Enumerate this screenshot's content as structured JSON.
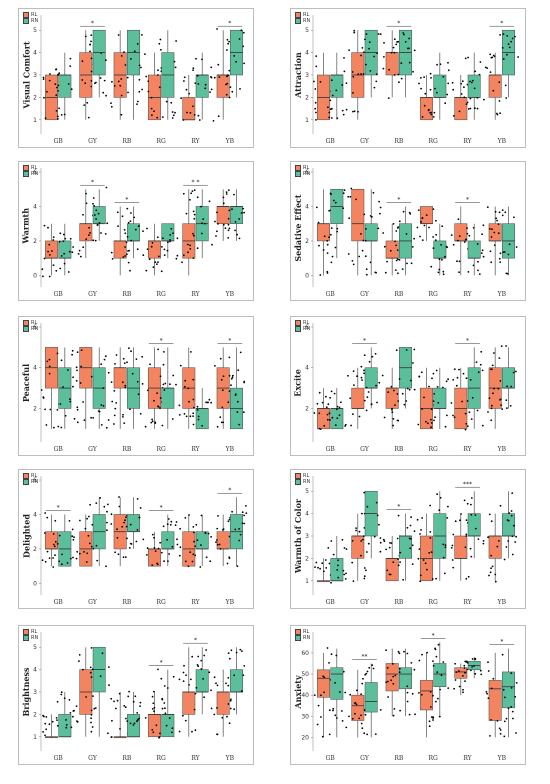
{
  "legend": [
    {
      "label": "RL",
      "color": "#f4845f"
    },
    {
      "label": "RN",
      "color": "#5bbf9c"
    }
  ],
  "colors": {
    "rl": "#f4845f",
    "rn": "#5bbf9c",
    "whisker": "#333333",
    "point": "#000000"
  },
  "chart_data": [
    {
      "type": "box",
      "ylabel": "Visual Comfort",
      "yticks": [
        1,
        2,
        3,
        4,
        5
      ],
      "ylim": [
        0.5,
        5.5
      ],
      "categories": [
        "GB",
        "GY",
        "RB",
        "RG",
        "RY",
        "YB"
      ],
      "significance": [
        "",
        "*",
        "",
        "",
        "",
        "*"
      ],
      "series": [
        {
          "name": "RL",
          "boxes": [
            [
              1,
              1,
              2,
              3,
              3
            ],
            [
              1,
              2,
              3,
              4,
              5
            ],
            [
              1,
              2,
              3,
              4,
              5
            ],
            [
              1,
              1,
              2,
              3,
              4
            ],
            [
              1,
              1,
              1,
              2,
              3
            ],
            [
              1,
              2,
              3,
              3,
              5
            ]
          ]
        },
        {
          "name": "RN",
          "boxes": [
            [
              1,
              2,
              3,
              3,
              4
            ],
            [
              2,
              3,
              4,
              5,
              5
            ],
            [
              1,
              3,
              4,
              5,
              5
            ],
            [
              1,
              2,
              3,
              4,
              5
            ],
            [
              1,
              2,
              3,
              3,
              4
            ],
            [
              2,
              3,
              4,
              5,
              5
            ]
          ]
        }
      ]
    },
    {
      "type": "box",
      "ylabel": "Attraction",
      "yticks": [
        1,
        2,
        3,
        4,
        5
      ],
      "ylim": [
        0.5,
        5.5
      ],
      "categories": [
        "GB",
        "GY",
        "RB",
        "RG",
        "RY",
        "YB"
      ],
      "significance": [
        "",
        "",
        "*",
        "",
        "",
        "*"
      ],
      "series": [
        {
          "name": "RL",
          "boxes": [
            [
              1,
              1,
              2,
              3,
              4
            ],
            [
              1,
              2,
              3,
              4,
              5
            ],
            [
              2,
              3,
              4,
              4,
              5
            ],
            [
              1,
              1,
              2,
              2,
              3
            ],
            [
              1,
              1,
              2,
              2,
              3
            ],
            [
              1,
              2,
              3,
              3,
              4
            ]
          ]
        },
        {
          "name": "RN",
          "boxes": [
            [
              1,
              2,
              3,
              3,
              4
            ],
            [
              2,
              3,
              4,
              5,
              5
            ],
            [
              2,
              3,
              4,
              5,
              5
            ],
            [
              1,
              2,
              2,
              3,
              4
            ],
            [
              1,
              2,
              2,
              3,
              4
            ],
            [
              2,
              3,
              4,
              5,
              5
            ]
          ]
        }
      ]
    },
    {
      "type": "box",
      "ylabel": "Warmth",
      "yticks": [
        0,
        2,
        4,
        6
      ],
      "ylim": [
        -0.5,
        6
      ],
      "categories": [
        "GB",
        "GY",
        "RB",
        "RG",
        "RY",
        "YB"
      ],
      "significance": [
        "",
        "*",
        "*",
        "",
        "* *",
        ""
      ],
      "series": [
        {
          "name": "RL",
          "boxes": [
            [
              0,
              1,
              1,
              2,
              3
            ],
            [
              1,
              2,
              3,
              3,
              5
            ],
            [
              0,
              1,
              2,
              2,
              4
            ],
            [
              0,
              1,
              2,
              2,
              3
            ],
            [
              0,
              1,
              2,
              3,
              5
            ],
            [
              2,
              3,
              4,
              4,
              5
            ]
          ]
        },
        {
          "name": "RN",
          "boxes": [
            [
              0,
              1,
              1,
              2,
              3
            ],
            [
              2,
              3,
              3,
              4,
              5
            ],
            [
              1,
              2,
              2,
              3,
              4
            ],
            [
              1,
              2,
              2,
              3,
              3
            ],
            [
              1,
              2,
              3,
              4,
              5
            ],
            [
              2,
              3,
              4,
              4,
              5
            ]
          ]
        }
      ]
    },
    {
      "type": "box",
      "ylabel": "Sedative Effect",
      "yticks": [
        0,
        2,
        4,
        6
      ],
      "ylim": [
        -0.5,
        6
      ],
      "categories": [
        "GB",
        "GY",
        "RB",
        "RG",
        "RY",
        "YB"
      ],
      "significance": [
        "",
        "",
        "*",
        "",
        "*",
        ""
      ],
      "series": [
        {
          "name": "RL",
          "boxes": [
            [
              0,
              2,
              3,
              3,
              5
            ],
            [
              0,
              2,
              3,
              5,
              5
            ],
            [
              0,
              1,
              1,
              2,
              3
            ],
            [
              2,
              3,
              3,
              4,
              4
            ],
            [
              0,
              2,
              2,
              3,
              4
            ],
            [
              0,
              2,
              2,
              3,
              4
            ]
          ]
        },
        {
          "name": "RN",
          "boxes": [
            [
              1,
              3,
              4,
              5,
              5
            ],
            [
              0,
              2,
              2,
              3,
              5
            ],
            [
              0,
              1,
              2,
              3,
              4
            ],
            [
              0,
              1,
              1,
              2,
              3
            ],
            [
              0,
              1,
              1,
              2,
              3
            ],
            [
              0,
              1,
              2,
              3,
              4
            ]
          ]
        }
      ]
    },
    {
      "type": "box",
      "ylabel": "Peaceful",
      "yticks": [
        2,
        4,
        6
      ],
      "ylim": [
        0.5,
        6
      ],
      "categories": [
        "GB",
        "GY",
        "RB",
        "RG",
        "RY",
        "YB"
      ],
      "significance": [
        "",
        "",
        "",
        "*",
        "",
        "*"
      ],
      "series": [
        {
          "name": "RL",
          "boxes": [
            [
              1,
              3,
              4,
              5,
              5
            ],
            [
              1,
              3,
              4,
              5,
              5
            ],
            [
              1,
              3,
              4,
              4,
              5
            ],
            [
              1,
              2,
              3,
              4,
              5
            ],
            [
              1,
              2,
              3,
              4,
              5
            ],
            [
              1,
              2,
              3,
              4,
              5
            ]
          ]
        },
        {
          "name": "RN",
          "boxes": [
            [
              1,
              2,
              3,
              4,
              5
            ],
            [
              1,
              2,
              3,
              4,
              5
            ],
            [
              1,
              2,
              3,
              4,
              5
            ],
            [
              1,
              2,
              3,
              3,
              5
            ],
            [
              1,
              1,
              2,
              2,
              3
            ],
            [
              1,
              1,
              2,
              3,
              5
            ]
          ]
        }
      ]
    },
    {
      "type": "box",
      "ylabel": "Excite",
      "yticks": [
        2,
        4,
        6
      ],
      "ylim": [
        0.5,
        6
      ],
      "categories": [
        "GB",
        "GY",
        "RB",
        "RG",
        "RY",
        "YB"
      ],
      "significance": [
        "",
        "*",
        "",
        "",
        "*",
        ""
      ],
      "series": [
        {
          "name": "RL",
          "boxes": [
            [
              1,
              1,
              2,
              2,
              3
            ],
            [
              1,
              2,
              2,
              3,
              4
            ],
            [
              1,
              2,
              3,
              3,
              4
            ],
            [
              1,
              1,
              2,
              3,
              4
            ],
            [
              1,
              1,
              2,
              3,
              4
            ],
            [
              1,
              2,
              3,
              4,
              5
            ]
          ]
        },
        {
          "name": "RN",
          "boxes": [
            [
              1,
              1,
              2,
              2,
              3
            ],
            [
              2,
              3,
              3,
              4,
              5
            ],
            [
              2,
              3,
              4,
              5,
              5
            ],
            [
              1,
              2,
              2,
              3,
              4
            ],
            [
              1,
              2,
              3,
              4,
              5
            ],
            [
              2,
              3,
              3,
              4,
              5
            ]
          ]
        }
      ]
    },
    {
      "type": "box",
      "ylabel": "Delighted",
      "yticks": [
        0,
        2,
        4,
        6
      ],
      "ylim": [
        -0.5,
        6
      ],
      "categories": [
        "GB",
        "GY",
        "RB",
        "RG",
        "RY",
        "YB"
      ],
      "significance": [
        "*",
        "",
        "",
        "*",
        "",
        "*"
      ],
      "series": [
        {
          "name": "RL",
          "boxes": [
            [
              1,
              2,
              2,
              3,
              4
            ],
            [
              1,
              1,
              2,
              3,
              4
            ],
            [
              1,
              2,
              3,
              4,
              5
            ],
            [
              1,
              1,
              2,
              2,
              3
            ],
            [
              1,
              1,
              2,
              3,
              4
            ],
            [
              1,
              2,
              2,
              3,
              4
            ]
          ]
        },
        {
          "name": "RN",
          "boxes": [
            [
              1,
              1,
              2,
              3,
              4
            ],
            [
              1,
              2,
              3,
              4,
              5
            ],
            [
              2,
              3,
              3,
              4,
              5
            ],
            [
              1,
              2,
              2,
              3,
              4
            ],
            [
              1,
              2,
              2,
              3,
              4
            ],
            [
              1,
              2,
              3,
              4,
              5
            ]
          ]
        }
      ]
    },
    {
      "type": "box",
      "ylabel": "Warmth of Color",
      "yticks": [
        1,
        2,
        3,
        4,
        5
      ],
      "ylim": [
        0.5,
        5.5
      ],
      "categories": [
        "GB",
        "GY",
        "RB",
        "RG",
        "RY",
        "YB"
      ],
      "significance": [
        "",
        "",
        "*",
        "",
        "***",
        ""
      ],
      "series": [
        {
          "name": "RL",
          "boxes": [
            [
              1,
              1,
              1,
              1,
              2
            ],
            [
              1,
              2,
              3,
              3,
              4
            ],
            [
              1,
              1,
              2,
              2,
              3
            ],
            [
              1,
              1,
              2,
              3,
              4
            ],
            [
              1,
              2,
              2,
              3,
              4
            ],
            [
              1,
              2,
              3,
              3,
              4
            ]
          ]
        },
        {
          "name": "RN",
          "boxes": [
            [
              1,
              1,
              1,
              2,
              3
            ],
            [
              2,
              3,
              4,
              5,
              5
            ],
            [
              1,
              2,
              3,
              3,
              4
            ],
            [
              1,
              2,
              3,
              4,
              5
            ],
            [
              2,
              3,
              3,
              4,
              5
            ],
            [
              2,
              3,
              3,
              4,
              5
            ]
          ]
        }
      ]
    },
    {
      "type": "box",
      "ylabel": "Brightness",
      "yticks": [
        1,
        2,
        3,
        4,
        5
      ],
      "ylim": [
        0.5,
        5.5
      ],
      "categories": [
        "GB",
        "GY",
        "RB",
        "RG",
        "RY",
        "YB"
      ],
      "significance": [
        "",
        "",
        "",
        "*",
        "*",
        ""
      ],
      "series": [
        {
          "name": "RL",
          "boxes": [
            [
              1,
              1,
              1,
              1,
              2
            ],
            [
              1,
              2,
              3,
              4,
              5
            ],
            [
              1,
              1,
              1,
              1,
              3
            ],
            [
              1,
              1,
              2,
              2,
              3
            ],
            [
              1,
              2,
              3,
              3,
              5
            ],
            [
              1,
              2,
              3,
              3,
              4
            ]
          ]
        },
        {
          "name": "RN",
          "boxes": [
            [
              1,
              1,
              1,
              2,
              3
            ],
            [
              1,
              3,
              4,
              5,
              5
            ],
            [
              1,
              1,
              1,
              2,
              3
            ],
            [
              1,
              1,
              2,
              2,
              4
            ],
            [
              2,
              3,
              3,
              4,
              5
            ],
            [
              2,
              3,
              3,
              4,
              5
            ]
          ]
        }
      ]
    },
    {
      "type": "box",
      "ylabel": "Anxiety",
      "yticks": [
        20,
        30,
        40,
        50,
        60
      ],
      "ylim": [
        15,
        68
      ],
      "categories": [
        "GB",
        "GY",
        "RB",
        "RG",
        "RY",
        "YB"
      ],
      "significance": [
        "",
        "**",
        "",
        "*",
        "",
        "*"
      ],
      "series": [
        {
          "name": "RL",
          "boxes": [
            [
              20,
              39,
              48,
              52,
              60
            ],
            [
              20,
              28,
              35,
              40,
              52
            ],
            [
              30,
              42,
              50,
              55,
              62
            ],
            [
              20,
              33,
              42,
              47,
              60
            ],
            [
              40,
              48,
              51,
              53,
              55
            ],
            [
              20,
              28,
              43,
              47,
              60
            ]
          ]
        },
        {
          "name": "RN",
          "boxes": [
            [
              20,
              38,
              50,
              53,
              62
            ],
            [
              20,
              32,
              37,
              46,
              55
            ],
            [
              30,
              43,
              50,
              53,
              62
            ],
            [
              30,
              44,
              50,
              55,
              65
            ],
            [
              48,
              52,
              54,
              56,
              58
            ],
            [
              20,
              34,
              44,
              51,
              62
            ]
          ]
        }
      ]
    }
  ]
}
